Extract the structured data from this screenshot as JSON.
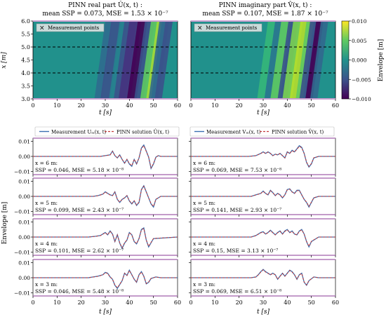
{
  "chart_data": [
    {
      "type": "heatmap",
      "title_line1": "PINN real part Û(x, t) :",
      "title_line2": "mean SSP = 0.073, MSE = 1.53 × 10⁻⁷",
      "xlabel": "t [s]",
      "ylabel": "x [m]",
      "xlim": [
        0,
        60
      ],
      "ylim": [
        3.0,
        6.0
      ],
      "x_ticks": [
        "0",
        "10",
        "20",
        "30",
        "40",
        "50",
        "60"
      ],
      "y_ticks": [
        "3.0",
        "3.5",
        "4.0",
        "4.5",
        "5.0",
        "5.5",
        "6.0"
      ],
      "legend": "Measurement points",
      "measurement_x": [
        3,
        4,
        5,
        6
      ],
      "z_range": [
        -0.01,
        0.01
      ]
    },
    {
      "type": "heatmap",
      "title_line1": "PINN imaginary part V̂(x, t) :",
      "title_line2": "mean SSP = 0.107, MSE = 1.87 × 10⁻⁷",
      "xlabel": "t [s]",
      "xlim": [
        0,
        60
      ],
      "ylim": [
        3.0,
        6.0
      ],
      "x_ticks": [
        "0",
        "10",
        "20",
        "30",
        "40",
        "50",
        "60"
      ],
      "legend": "Measurement points",
      "measurement_x": [
        3,
        4,
        5,
        6
      ],
      "colorbar_label": "Envelope [m]",
      "colorbar_ticks": [
        "0.010",
        "0.005",
        "0.000",
        "−0.005",
        "−0.010"
      ],
      "z_range": [
        -0.01,
        0.01
      ]
    },
    {
      "type": "line",
      "legend": [
        "Measurement Uₘ(x, t)",
        "PINN solution Û(x, t)"
      ],
      "xlabel": "t [s]",
      "ylabel": "Envelope [m]",
      "xlim": [
        0,
        60
      ],
      "ylim": [
        -0.012,
        0.012
      ],
      "y_ticks": [
        "0.01",
        "0.00",
        "−0.01"
      ],
      "x_ticks": [
        "0",
        "10",
        "20",
        "30",
        "40",
        "50",
        "60"
      ],
      "panels": [
        {
          "x_label": "x = 6 m:",
          "stats": "SSP = 0.046, MSE = 5.18 × 10⁻⁸",
          "t": [
            0,
            28,
            30,
            32,
            33,
            34,
            35,
            36,
            37,
            38,
            39,
            40,
            41,
            42,
            43,
            44,
            45,
            46,
            47,
            48,
            49,
            50,
            51,
            52,
            53,
            60
          ],
          "values": [
            0,
            0,
            0.0005,
            0.001,
            0.0035,
            0.0005,
            -0.001,
            0.001,
            -0.002,
            -0.0045,
            -0.002,
            -0.005,
            -0.0065,
            -0.002,
            -0.005,
            -0.001,
            0.0055,
            0.0075,
            0.0035,
            -0.0005,
            -0.008,
            -0.005,
            -0.0005,
            0.0005,
            0,
            0
          ]
        },
        {
          "x_label": "x = 5 m:",
          "stats": "SSP = 0.099, MSE = 2.43 × 10⁻⁷",
          "t": [
            0,
            25,
            27,
            29,
            30,
            31,
            32,
            33,
            34,
            35,
            36,
            37,
            38,
            39,
            40,
            41,
            42,
            43,
            44,
            45,
            46,
            47,
            48,
            49,
            50,
            51,
            53,
            60
          ],
          "values": [
            0,
            0,
            0.0005,
            0.0015,
            0.003,
            0.002,
            0.001,
            0.0005,
            0.003,
            -0.002,
            -0.004,
            -0.002,
            -0.001,
            0.0005,
            -0.003,
            -0.005,
            -0.003,
            -0.006,
            -0.004,
            0.0045,
            0.007,
            0.003,
            -0.001,
            -0.005,
            -0.007,
            -0.002,
            0,
            0
          ]
        },
        {
          "x_label": "x = 4 m:",
          "stats": "SSP = 0.101, MSE = 2.62 × 10⁻⁷",
          "t": [
            0,
            23,
            26,
            28,
            30,
            31,
            32,
            33,
            34,
            35,
            36,
            37,
            38,
            39,
            40,
            41,
            42,
            43,
            44,
            45,
            46,
            47,
            48,
            50,
            60
          ],
          "values": [
            0,
            0,
            0.0005,
            0.001,
            0.003,
            0.0015,
            0.004,
            0.002,
            -0.003,
            0.0015,
            -0.004,
            -0.0075,
            -0.004,
            -0.002,
            0.003,
            0.0015,
            -0.003,
            -0.0045,
            -0.001,
            0.005,
            0.006,
            -0.002,
            -0.0065,
            -0.001,
            0
          ]
        },
        {
          "x_label": "x = 3 m:",
          "stats": "SSP = 0.046, MSE = 5.48 × 10⁻⁸",
          "t": [
            0,
            23,
            25,
            27,
            29,
            30,
            31,
            32,
            33,
            34,
            35,
            36,
            37,
            38,
            39,
            40,
            41,
            42,
            43,
            44,
            45,
            46,
            47,
            48,
            49,
            51,
            53,
            60
          ],
          "values": [
            0,
            0,
            0.0005,
            0.001,
            0.002,
            0.0035,
            0.003,
            0.0005,
            -0.001,
            -0.005,
            -0.007,
            -0.0045,
            -0.002,
            0.003,
            0.0015,
            0.005,
            0.002,
            -0.001,
            -0.003,
            0.002,
            0.004,
            0.001,
            -0.004,
            -0.003,
            -0.0005,
            0.0005,
            0,
            0
          ]
        }
      ]
    },
    {
      "type": "line",
      "legend": [
        "Measurement Vₘ(x, t)",
        "PINN solution V̂(x, t)"
      ],
      "xlabel": "t [s]",
      "xlim": [
        0,
        60
      ],
      "ylim": [
        -0.012,
        0.012
      ],
      "x_ticks": [
        "0",
        "10",
        "20",
        "30",
        "40",
        "50",
        "60"
      ],
      "panels": [
        {
          "x_label": "x = 6 m:",
          "stats": "SSP = 0.069, MSE = 7.53 × 10⁻⁸",
          "t": [
            0,
            24,
            27,
            29,
            30,
            31,
            32,
            33,
            34,
            35,
            36,
            37,
            38,
            39,
            40,
            41,
            42,
            43,
            44,
            45,
            46,
            47,
            48,
            49,
            50,
            51,
            53,
            60
          ],
          "values": [
            0,
            0,
            0.0005,
            0.002,
            0.003,
            0.002,
            0.003,
            0.002,
            0.0005,
            0.0015,
            0.001,
            0.002,
            0.0005,
            -0.001,
            0.003,
            0.002,
            0.004,
            0.003,
            0.005,
            0.007,
            0.006,
            0.002,
            -0.004,
            -0.007,
            -0.005,
            -0.001,
            0,
            0
          ]
        },
        {
          "x_label": "x = 5 m:",
          "stats": "SSP = 0.141, MSE = 2.93 × 10⁻⁷",
          "t": [
            0,
            25,
            27,
            29,
            30,
            31,
            32,
            33,
            34,
            35,
            36,
            37,
            38,
            39,
            40,
            41,
            42,
            43,
            44,
            45,
            46,
            47,
            48,
            49,
            50,
            51,
            53,
            60
          ],
          "values": [
            0,
            0,
            0.001,
            0.002,
            0.0035,
            0.002,
            0.001,
            0.004,
            0.0025,
            0.0005,
            0.002,
            0.001,
            -0.001,
            0.001,
            0.0045,
            0.005,
            0.003,
            0.002,
            0.004,
            0.004,
            0.001,
            -0.002,
            -0.004,
            -0.007,
            -0.004,
            -0.001,
            0,
            0
          ]
        },
        {
          "x_label": "x = 4 m:",
          "stats": "SSP = 0.15, MSE = 3.13 × 10⁻⁷",
          "t": [
            0,
            25,
            27,
            29,
            30,
            31,
            32,
            33,
            34,
            35,
            36,
            37,
            38,
            39,
            40,
            41,
            42,
            43,
            44,
            45,
            46,
            47,
            48,
            49,
            50,
            53,
            60
          ],
          "values": [
            0,
            0,
            0.001,
            0.003,
            0.0035,
            0.002,
            0.003,
            0.0045,
            0.003,
            0.0015,
            0.003,
            0.004,
            0.002,
            0.004,
            0.005,
            0.003,
            0.004,
            0.002,
            0.0015,
            0.004,
            0.005,
            0.002,
            -0.003,
            -0.0065,
            -0.003,
            0,
            0
          ]
        },
        {
          "x_label": "x = 3 m:",
          "stats": "SSP = 0.069, MSE = 6.51 × 10⁻⁸",
          "t": [
            0,
            25,
            27,
            28,
            29,
            30,
            31,
            32,
            33,
            34,
            35,
            36,
            37,
            38,
            39,
            40,
            41,
            42,
            43,
            44,
            45,
            46,
            47,
            48,
            49,
            51,
            53,
            60
          ],
          "values": [
            0,
            0,
            0.0005,
            0.002,
            0.004,
            0.0055,
            0.004,
            0.003,
            0.002,
            0.003,
            0.002,
            -0.001,
            0.001,
            0.003,
            0.001,
            0.003,
            0.005,
            0.004,
            0.002,
            -0.001,
            0.002,
            0.003,
            -0.003,
            -0.005,
            -0.002,
            0.0005,
            0,
            0
          ]
        }
      ]
    }
  ],
  "colors": {
    "measurement": "#3a6fb0",
    "pinn": "#c23a3a",
    "panel_border": "#b07ab8",
    "measurement_line": "#000000"
  }
}
